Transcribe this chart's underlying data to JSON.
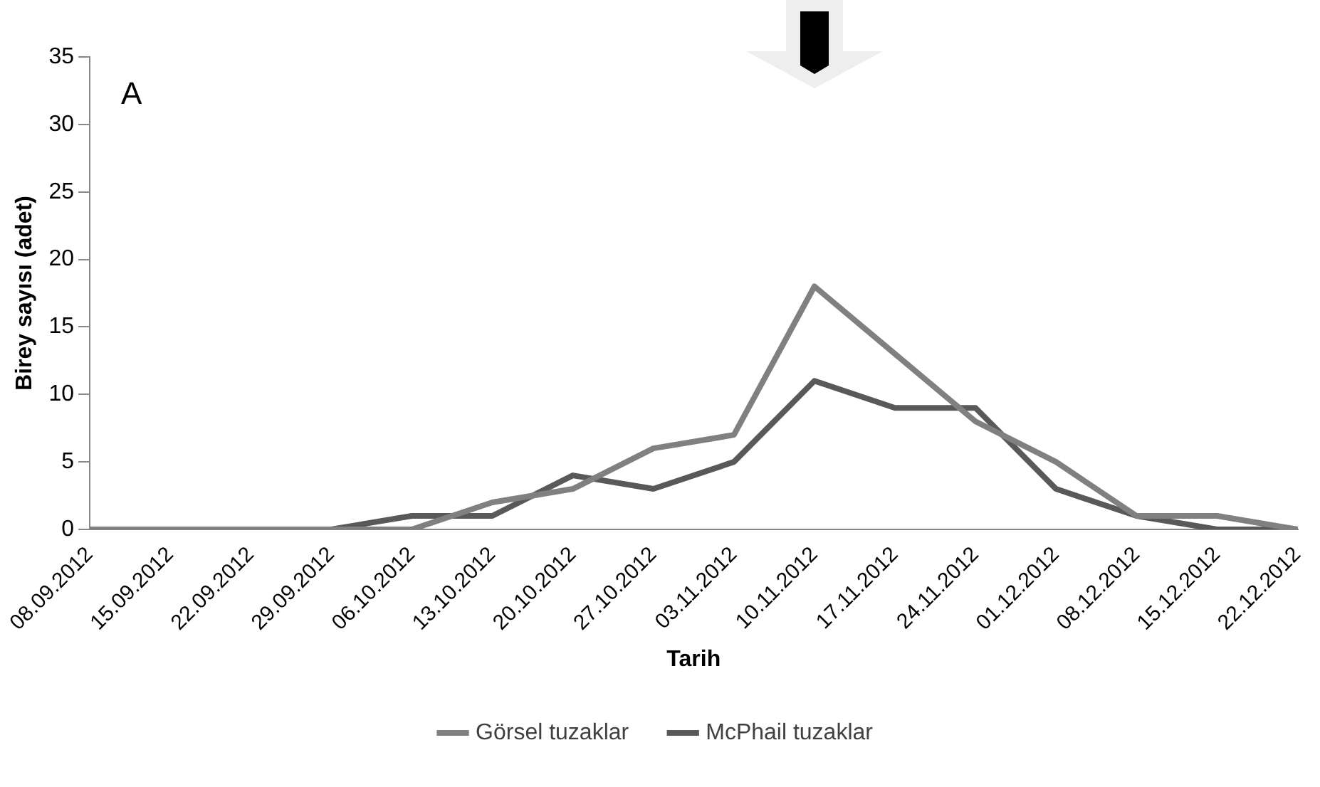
{
  "chart_data": {
    "type": "line",
    "xlabel": "Tarih",
    "ylabel": "Birey sayısı (adet)",
    "annotations": [
      "A"
    ],
    "categories": [
      "08.09.2012",
      "15.09.2012",
      "22.09.2012",
      "29.09.2012",
      "06.10.2012",
      "13.10.2012",
      "20.10.2012",
      "27.10.2012",
      "03.11.2012",
      "10.11.2012",
      "17.11.2012",
      "24.11.2012",
      "01.12.2012",
      "08.12.2012",
      "15.12.2012",
      "22.12.2012"
    ],
    "series": [
      {
        "name": "Görsel tuzaklar",
        "color": "#808080",
        "values": [
          0,
          0,
          0,
          0,
          0,
          2,
          3,
          6,
          7,
          18,
          13,
          8,
          5,
          1,
          1,
          0
        ]
      },
      {
        "name": "McPhail tuzaklar",
        "color": "#595959",
        "values": [
          0,
          0,
          0,
          0,
          1,
          1,
          4,
          3,
          5,
          11,
          9,
          9,
          3,
          1,
          0,
          0
        ]
      }
    ],
    "ylim": [
      0,
      35
    ],
    "yticks": [
      0,
      5,
      10,
      15,
      20,
      25,
      30,
      35
    ],
    "grid": false,
    "legend": "bottom",
    "marker": "none",
    "line_style": "solid"
  }
}
